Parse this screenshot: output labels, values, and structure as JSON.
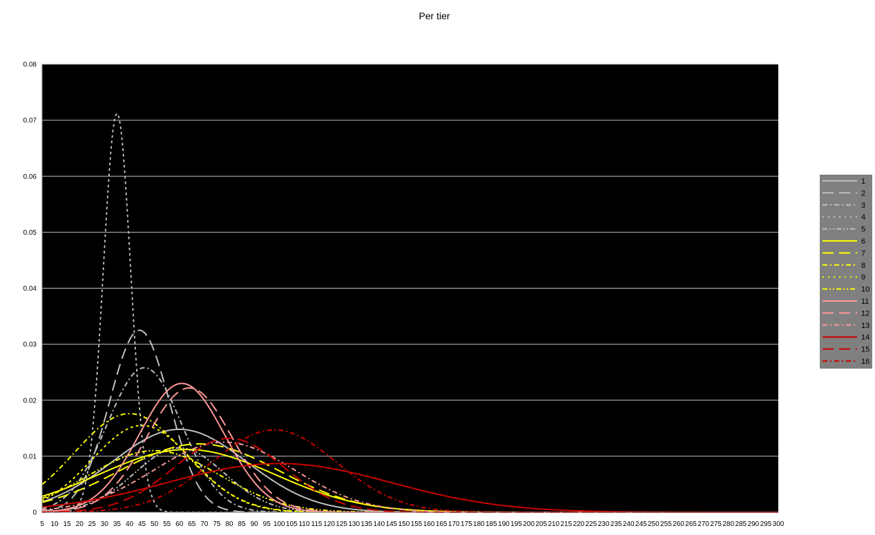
{
  "chart_data": {
    "type": "line",
    "title": "Per tier",
    "xlabel": "",
    "ylabel": "",
    "x_start": 5,
    "x_end": 300,
    "x_step": 5,
    "ylim": [
      0,
      0.08
    ],
    "y_ticks": [
      "0",
      "0.01",
      "0.02",
      "0.03",
      "0.04",
      "0.05",
      "0.06",
      "0.07",
      "0.08"
    ],
    "x_tick_labels": [
      "5",
      "10",
      "15",
      "20",
      "25",
      "30",
      "35",
      "40",
      "45",
      "50",
      "55",
      "60",
      "65",
      "70",
      "75",
      "80",
      "85",
      "90",
      "95",
      "100",
      "105",
      "110",
      "115",
      "120",
      "125",
      "130",
      "135",
      "140",
      "145",
      "150",
      "155",
      "160",
      "165",
      "170",
      "175",
      "180",
      "185",
      "190",
      "195",
      "200",
      "205",
      "210",
      "215",
      "220",
      "225",
      "230",
      "235",
      "240",
      "245",
      "250",
      "255",
      "260",
      "265",
      "270",
      "275",
      "280",
      "285",
      "290",
      "295",
      "300"
    ],
    "plot_background": "#000000",
    "grid": true,
    "grid_color": "#c0c0c0",
    "legend_position": "right",
    "legend_background": "#808080",
    "series": [
      {
        "name": "1",
        "color": "#c0c0c0",
        "dash": "solid",
        "mean": 60,
        "sd": 27,
        "peak": 0.0148
      },
      {
        "name": "2",
        "color": "#c0c0c0",
        "dash": "longdash",
        "mean": 44,
        "sd": 12,
        "peak": 0.0325
      },
      {
        "name": "3",
        "color": "#c0c0c0",
        "dash": "dashdot",
        "mean": 46,
        "sd": 15,
        "peak": 0.0258
      },
      {
        "name": "4",
        "color": "#c0c0c0",
        "dash": "dot",
        "mean": 35,
        "sd": 5.5,
        "peak": 0.0712
      },
      {
        "name": "5",
        "color": "#c0c0c0",
        "dash": "dashdotdot",
        "mean": 60,
        "sd": 18,
        "peak": 0.0115
      },
      {
        "name": "6",
        "color": "#ffff00",
        "dash": "solid",
        "mean": 63,
        "sd": 35,
        "peak": 0.0112
      },
      {
        "name": "7",
        "color": "#ffff00",
        "dash": "longdash",
        "mean": 68,
        "sd": 32,
        "peak": 0.0122
      },
      {
        "name": "8",
        "color": "#ffff00",
        "dash": "dashdot",
        "mean": 40,
        "sd": 22,
        "peak": 0.0176
      },
      {
        "name": "9",
        "color": "#ffff00",
        "dash": "dot",
        "mean": 45,
        "sd": 20,
        "peak": 0.0155
      },
      {
        "name": "10",
        "color": "#ffff00",
        "dash": "dashdotdot",
        "mean": 50,
        "sd": 26,
        "peak": 0.011
      },
      {
        "name": "11",
        "color": "#ff9999",
        "dash": "solid",
        "mean": 61,
        "sd": 17,
        "peak": 0.023
      },
      {
        "name": "12",
        "color": "#ff9999",
        "dash": "longdash",
        "mean": 64,
        "sd": 17,
        "peak": 0.0222
      },
      {
        "name": "13",
        "color": "#ff9999",
        "dash": "dashdot",
        "mean": 78,
        "sd": 28,
        "peak": 0.0125
      },
      {
        "name": "14",
        "color": "#cc0000",
        "dash": "solid",
        "mean": 100,
        "sd": 45,
        "peak": 0.0087
      },
      {
        "name": "15",
        "color": "#cc0000",
        "dash": "longdash",
        "mean": 80,
        "sd": 22,
        "peak": 0.0132
      },
      {
        "name": "16",
        "color": "#cc0000",
        "dash": "dashdot",
        "mean": 98,
        "sd": 25,
        "peak": 0.0147
      }
    ]
  }
}
